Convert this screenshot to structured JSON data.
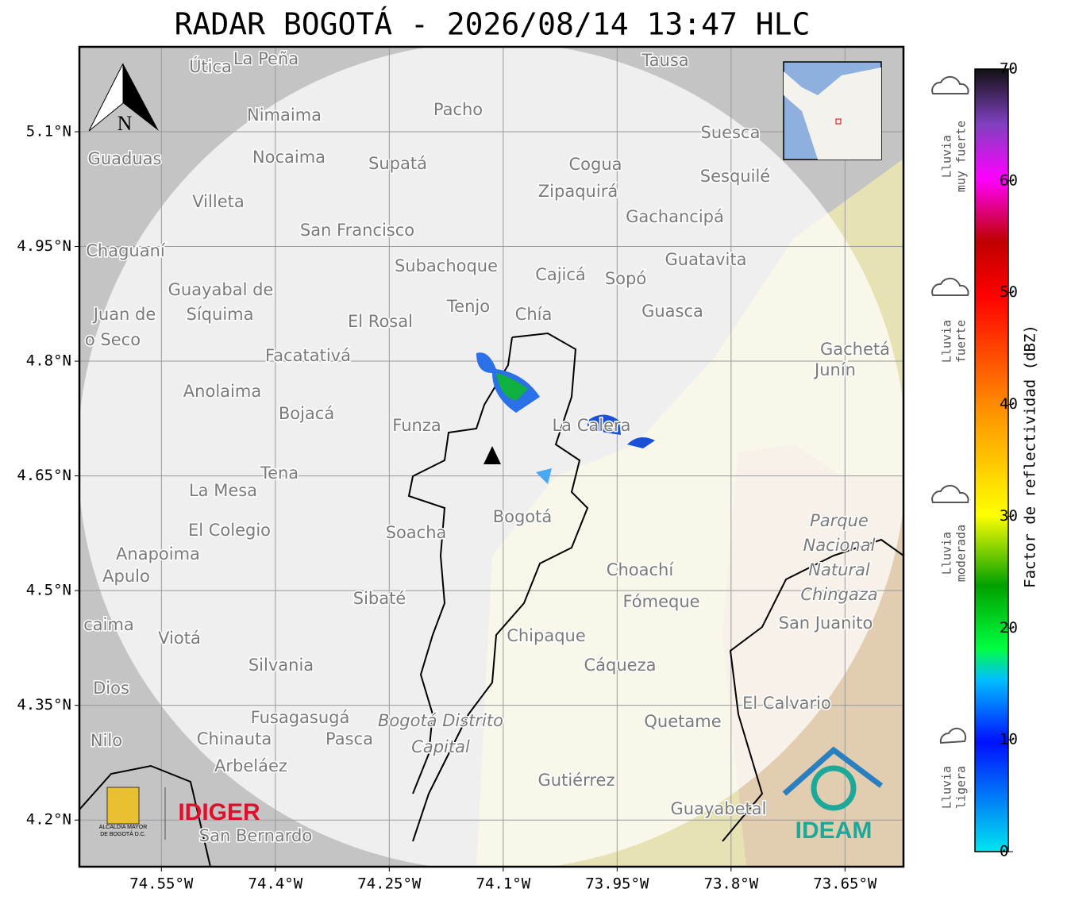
{
  "title": "RADAR BOGOTÁ - 2026/08/14 13:47 HLC",
  "map": {
    "xlim": [
      -74.658,
      -73.573
    ],
    "ylim": [
      4.139,
      5.211
    ],
    "xticks": [
      {
        "value": -74.55,
        "label": "74.55°W"
      },
      {
        "value": -74.4,
        "label": "74.4°W"
      },
      {
        "value": -74.25,
        "label": "74.25°W"
      },
      {
        "value": -74.1,
        "label": "74.1°W"
      },
      {
        "value": -73.95,
        "label": "73.95°W"
      },
      {
        "value": -73.8,
        "label": "73.8°W"
      },
      {
        "value": -73.65,
        "label": "73.65°W"
      }
    ],
    "yticks": [
      {
        "value": 5.1,
        "label": "5.1°N"
      },
      {
        "value": 4.95,
        "label": "4.95°N"
      },
      {
        "value": 4.8,
        "label": "4.8°N"
      },
      {
        "value": 4.65,
        "label": "4.65°N"
      },
      {
        "value": 4.5,
        "label": "4.5°N"
      },
      {
        "value": 4.35,
        "label": "4.35°N"
      },
      {
        "value": 4.2,
        "label": "4.2°N"
      }
    ],
    "grid": true,
    "north": "N",
    "places": [
      "Útica",
      "La Peña",
      "Tausa",
      "Pacho",
      "Nimaima",
      "Guaduas",
      "Nocaima",
      "Supatá",
      "Cogua",
      "Suesca",
      "Sesquilé",
      "Zipaquirá",
      "Villeta",
      "Gachancipá",
      "San Francisco",
      "Chaguaní",
      "Guatavita",
      "Subachoque",
      "Cajicá",
      "Sopó",
      "Guayabal de",
      "Síquima",
      "Juan de",
      "Tenjo",
      "Chía",
      "Guasca",
      "El Rosal",
      "o Seco",
      "Gachetá",
      "Junín",
      "Facatativá",
      "Anolaima",
      "Bojacá",
      "Funza",
      "La Calera",
      "Tena",
      "La Mesa",
      "Bogotá",
      "Soacha",
      "El Colegio",
      "Anapoima",
      "Apulo",
      "Choachí",
      "Sibaté",
      "Fómeque",
      "San Juanito",
      "caima",
      "Viotá",
      "Chipaque",
      "Silvania",
      "Cáqueza",
      "Dios",
      "El Calvario",
      "Fusagasugá",
      "Quetame",
      "Nilo",
      "Chinauta",
      "Pasca",
      "Arbeláez",
      "Gutiérrez",
      "Guayabetal",
      "San Bernardo"
    ],
    "park": [
      "Parque",
      "Nacional",
      "Natural",
      "Chingaza"
    ],
    "district": [
      "Bogotá Distrito",
      "Capital"
    ]
  },
  "colorbar": {
    "label": "Factor de reflectividad (dBZ)",
    "lim": [
      0,
      70
    ],
    "ticks": [
      0,
      10,
      20,
      30,
      40,
      50,
      60,
      70
    ]
  },
  "rain_labels": [
    [
      "Lluvia",
      "ligera"
    ],
    [
      "Lluvia",
      "moderada"
    ],
    [
      "Lluvia",
      "fuerte"
    ],
    [
      "Lluvia",
      "muy fuerte"
    ]
  ],
  "logos": {
    "idiger": "IDIGER",
    "alcaldia": [
      "ALCALDÍA MAYOR",
      "DE BOGOTÁ D.C."
    ],
    "ideam": "IDEAM"
  }
}
